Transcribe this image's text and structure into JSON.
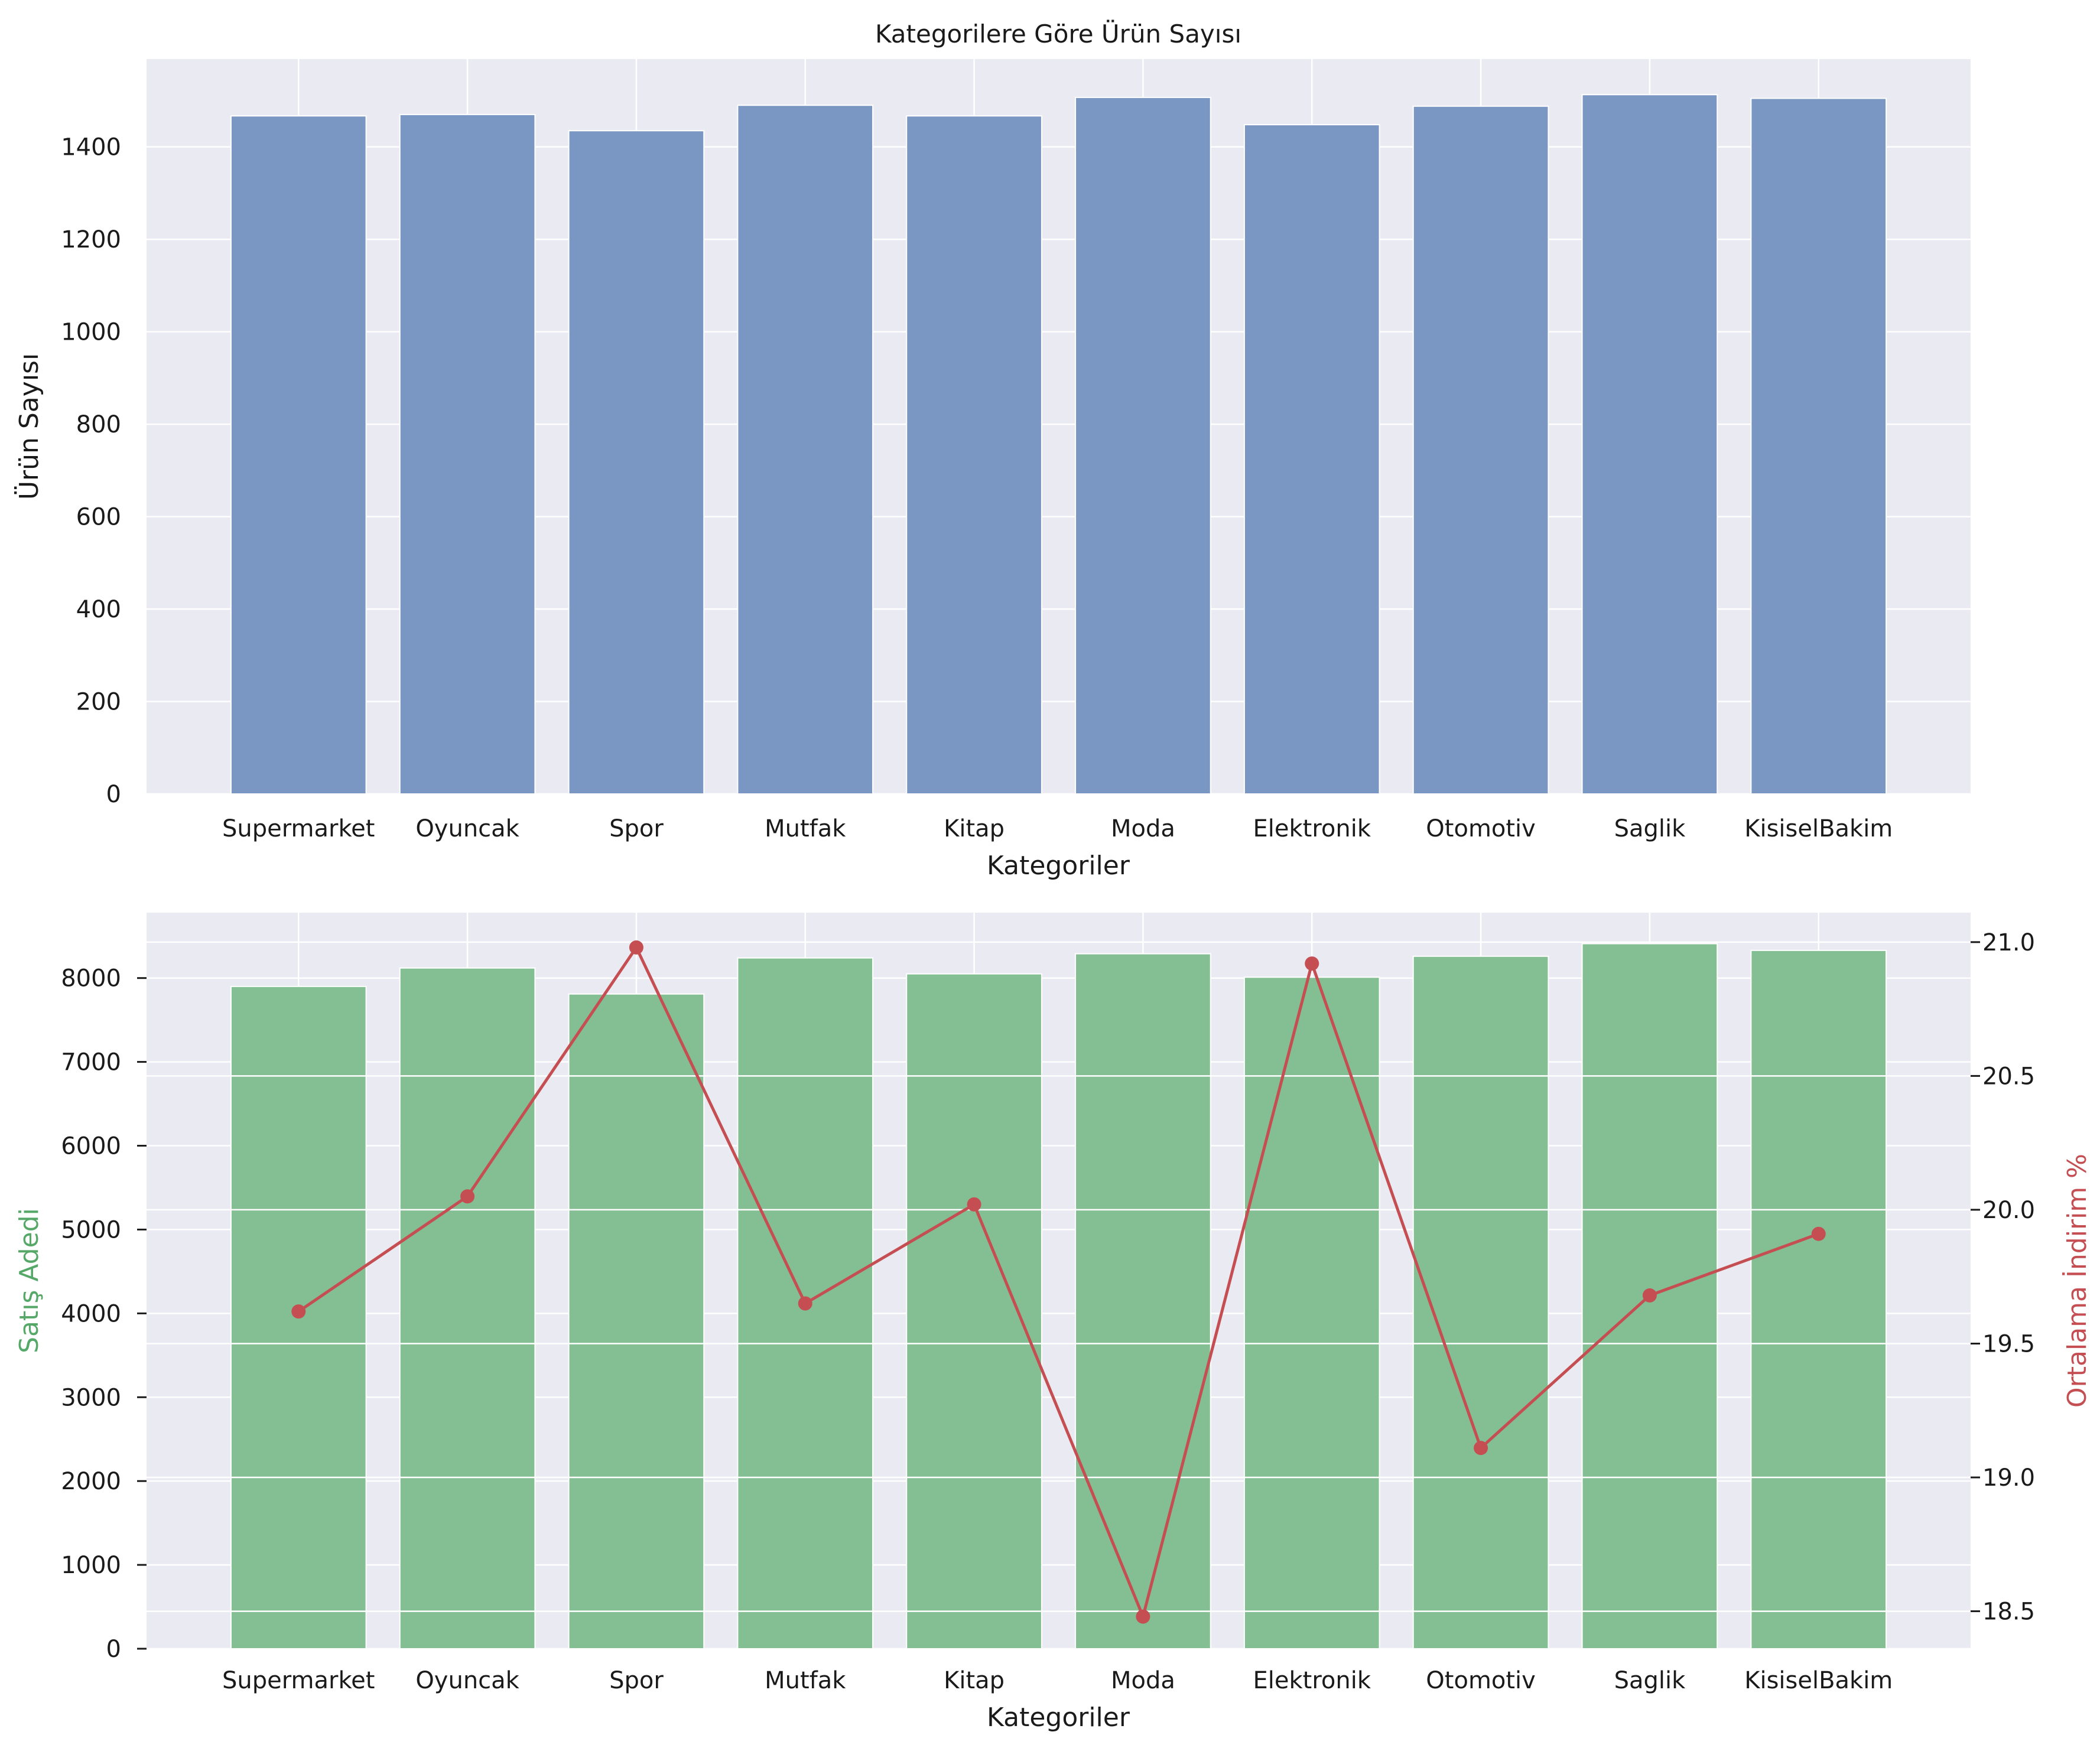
{
  "chart_data": [
    {
      "type": "bar",
      "title": "Kategorilere Göre Ürün Sayısı",
      "xlabel": "Kategoriler",
      "ylabel": "Ürün Sayısı",
      "categories": [
        "Supermarket",
        "Oyuncak",
        "Spor",
        "Mutfak",
        "Kitap",
        "Moda",
        "Elektronik",
        "Otomotiv",
        "Saglik",
        "KisiselBakim"
      ],
      "values": [
        1467,
        1470,
        1435,
        1490,
        1467,
        1507,
        1448,
        1488,
        1513,
        1505
      ],
      "ylim": [
        0,
        1590
      ],
      "yticks": [
        0,
        200,
        400,
        600,
        800,
        1000,
        1200,
        1400
      ],
      "bar_color": "#7a96c2",
      "grid": true
    },
    {
      "type": "bar+line",
      "title": "",
      "xlabel": "Kategoriler",
      "ylabel": "Satış Adedi",
      "y2label": "Ortalama İndirim %",
      "categories": [
        "Supermarket",
        "Oyuncak",
        "Spor",
        "Mutfak",
        "Kitap",
        "Moda",
        "Elektronik",
        "Otomotiv",
        "Saglik",
        "KisiselBakim"
      ],
      "series": [
        {
          "name": "Satış Adedi",
          "type": "bar",
          "axis": "left",
          "color": "#84bf94",
          "values": [
            7900,
            8120,
            7810,
            8240,
            8050,
            8290,
            8010,
            8260,
            8410,
            8330
          ]
        },
        {
          "name": "Ortalama İndirim %",
          "type": "line",
          "axis": "right",
          "color": "#c44e52",
          "values": [
            19.62,
            20.05,
            20.98,
            19.65,
            20.02,
            18.48,
            20.92,
            19.11,
            19.68,
            19.91
          ]
        }
      ],
      "ylim": [
        0,
        8780
      ],
      "yticks": [
        0,
        1000,
        2000,
        3000,
        4000,
        5000,
        6000,
        7000,
        8000
      ],
      "y2lim": [
        18.36,
        21.11
      ],
      "y2ticks": [
        "18.5",
        "19.0",
        "19.5",
        "20.0",
        "20.5",
        "21.0"
      ],
      "ylabel_color": "#55a868",
      "y2label_color": "#c44e52",
      "grid": true
    }
  ]
}
